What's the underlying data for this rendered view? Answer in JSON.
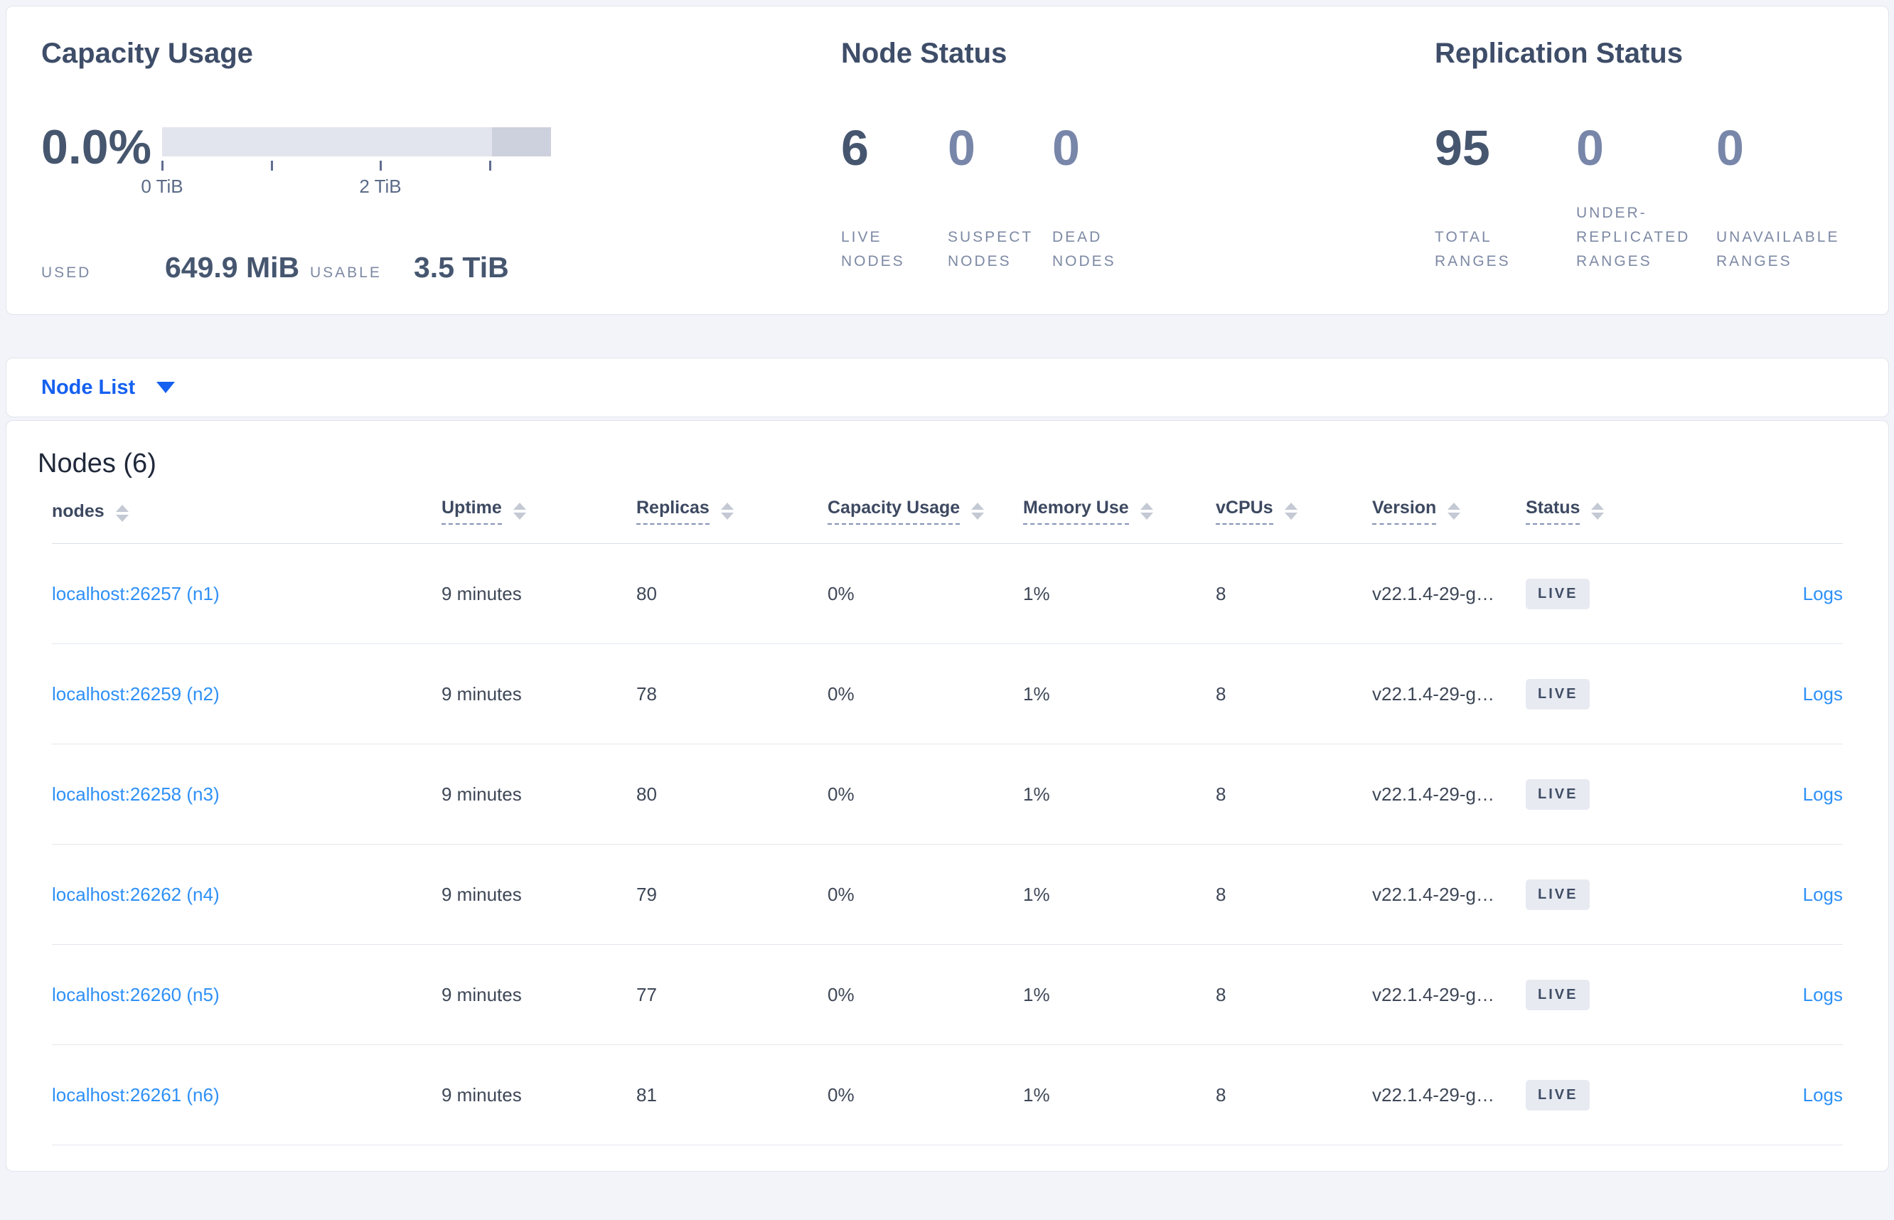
{
  "summary_cards": {
    "capacity": {
      "title": "Capacity Usage",
      "percent": "0.0%",
      "gauge": {
        "ticks": [
          {
            "label": "0 TiB"
          },
          {
            "label": ""
          },
          {
            "label": "2 TiB"
          },
          {
            "label": ""
          }
        ],
        "bar_color": "#e2e4ee",
        "reserved_segment_color": "#cdd0dd"
      },
      "used_label": "USED",
      "used_value": "649.9 MiB",
      "usable_label": "USABLE",
      "usable_value": "3.5 TiB"
    },
    "node_status": {
      "title": "Node Status",
      "stats": [
        {
          "value": "6",
          "label": "LIVE NODES",
          "muted": false
        },
        {
          "value": "0",
          "label": "SUSPECT NODES",
          "muted": true
        },
        {
          "value": "0",
          "label": "DEAD NODES",
          "muted": true
        }
      ]
    },
    "replication": {
      "title": "Replication Status",
      "stats": [
        {
          "value": "95",
          "label": "TOTAL RANGES",
          "muted": false
        },
        {
          "value": "0",
          "label": "UNDER-REPLICATED RANGES",
          "muted": true
        },
        {
          "value": "0",
          "label": "UNAVAILABLE RANGES",
          "muted": true
        }
      ]
    }
  },
  "view_selector": {
    "label": "Node List"
  },
  "nodes_section": {
    "heading": "Nodes (6)",
    "columns": [
      {
        "label": "nodes",
        "sortable": true,
        "tooltip_underline": false
      },
      {
        "label": "Uptime",
        "sortable": true,
        "tooltip_underline": true
      },
      {
        "label": "Replicas",
        "sortable": true,
        "tooltip_underline": true
      },
      {
        "label": "Capacity Usage",
        "sortable": true,
        "tooltip_underline": true
      },
      {
        "label": "Memory Use",
        "sortable": true,
        "tooltip_underline": true
      },
      {
        "label": "vCPUs",
        "sortable": true,
        "tooltip_underline": true
      },
      {
        "label": "Version",
        "sortable": true,
        "tooltip_underline": true
      },
      {
        "label": "Status",
        "sortable": true,
        "tooltip_underline": true
      },
      {
        "label": "",
        "sortable": false,
        "tooltip_underline": false
      }
    ],
    "rows": [
      {
        "node": "localhost:26257 (n1)",
        "uptime": "9 minutes",
        "replicas": "80",
        "capacity_usage": "0%",
        "memory_use": "1%",
        "vcpus": "8",
        "version": "v22.1.4-29-g…",
        "status": "LIVE",
        "logs": "Logs"
      },
      {
        "node": "localhost:26259 (n2)",
        "uptime": "9 minutes",
        "replicas": "78",
        "capacity_usage": "0%",
        "memory_use": "1%",
        "vcpus": "8",
        "version": "v22.1.4-29-g…",
        "status": "LIVE",
        "logs": "Logs"
      },
      {
        "node": "localhost:26258 (n3)",
        "uptime": "9 minutes",
        "replicas": "80",
        "capacity_usage": "0%",
        "memory_use": "1%",
        "vcpus": "8",
        "version": "v22.1.4-29-g…",
        "status": "LIVE",
        "logs": "Logs"
      },
      {
        "node": "localhost:26262 (n4)",
        "uptime": "9 minutes",
        "replicas": "79",
        "capacity_usage": "0%",
        "memory_use": "1%",
        "vcpus": "8",
        "version": "v22.1.4-29-g…",
        "status": "LIVE",
        "logs": "Logs"
      },
      {
        "node": "localhost:26260 (n5)",
        "uptime": "9 minutes",
        "replicas": "77",
        "capacity_usage": "0%",
        "memory_use": "1%",
        "vcpus": "8",
        "version": "v22.1.4-29-g…",
        "status": "LIVE",
        "logs": "Logs"
      },
      {
        "node": "localhost:26261 (n6)",
        "uptime": "9 minutes",
        "replicas": "81",
        "capacity_usage": "0%",
        "memory_use": "1%",
        "vcpus": "8",
        "version": "v22.1.4-29-g…",
        "status": "LIVE",
        "logs": "Logs"
      }
    ]
  },
  "colors": {
    "link_blue": "#2e90f6",
    "selector_blue": "#1560f0",
    "stat_dark": "#46566f",
    "stat_muted": "#7886a9",
    "badge_bg": "#e7eaf1",
    "page_bg": "#f2f4f9"
  }
}
